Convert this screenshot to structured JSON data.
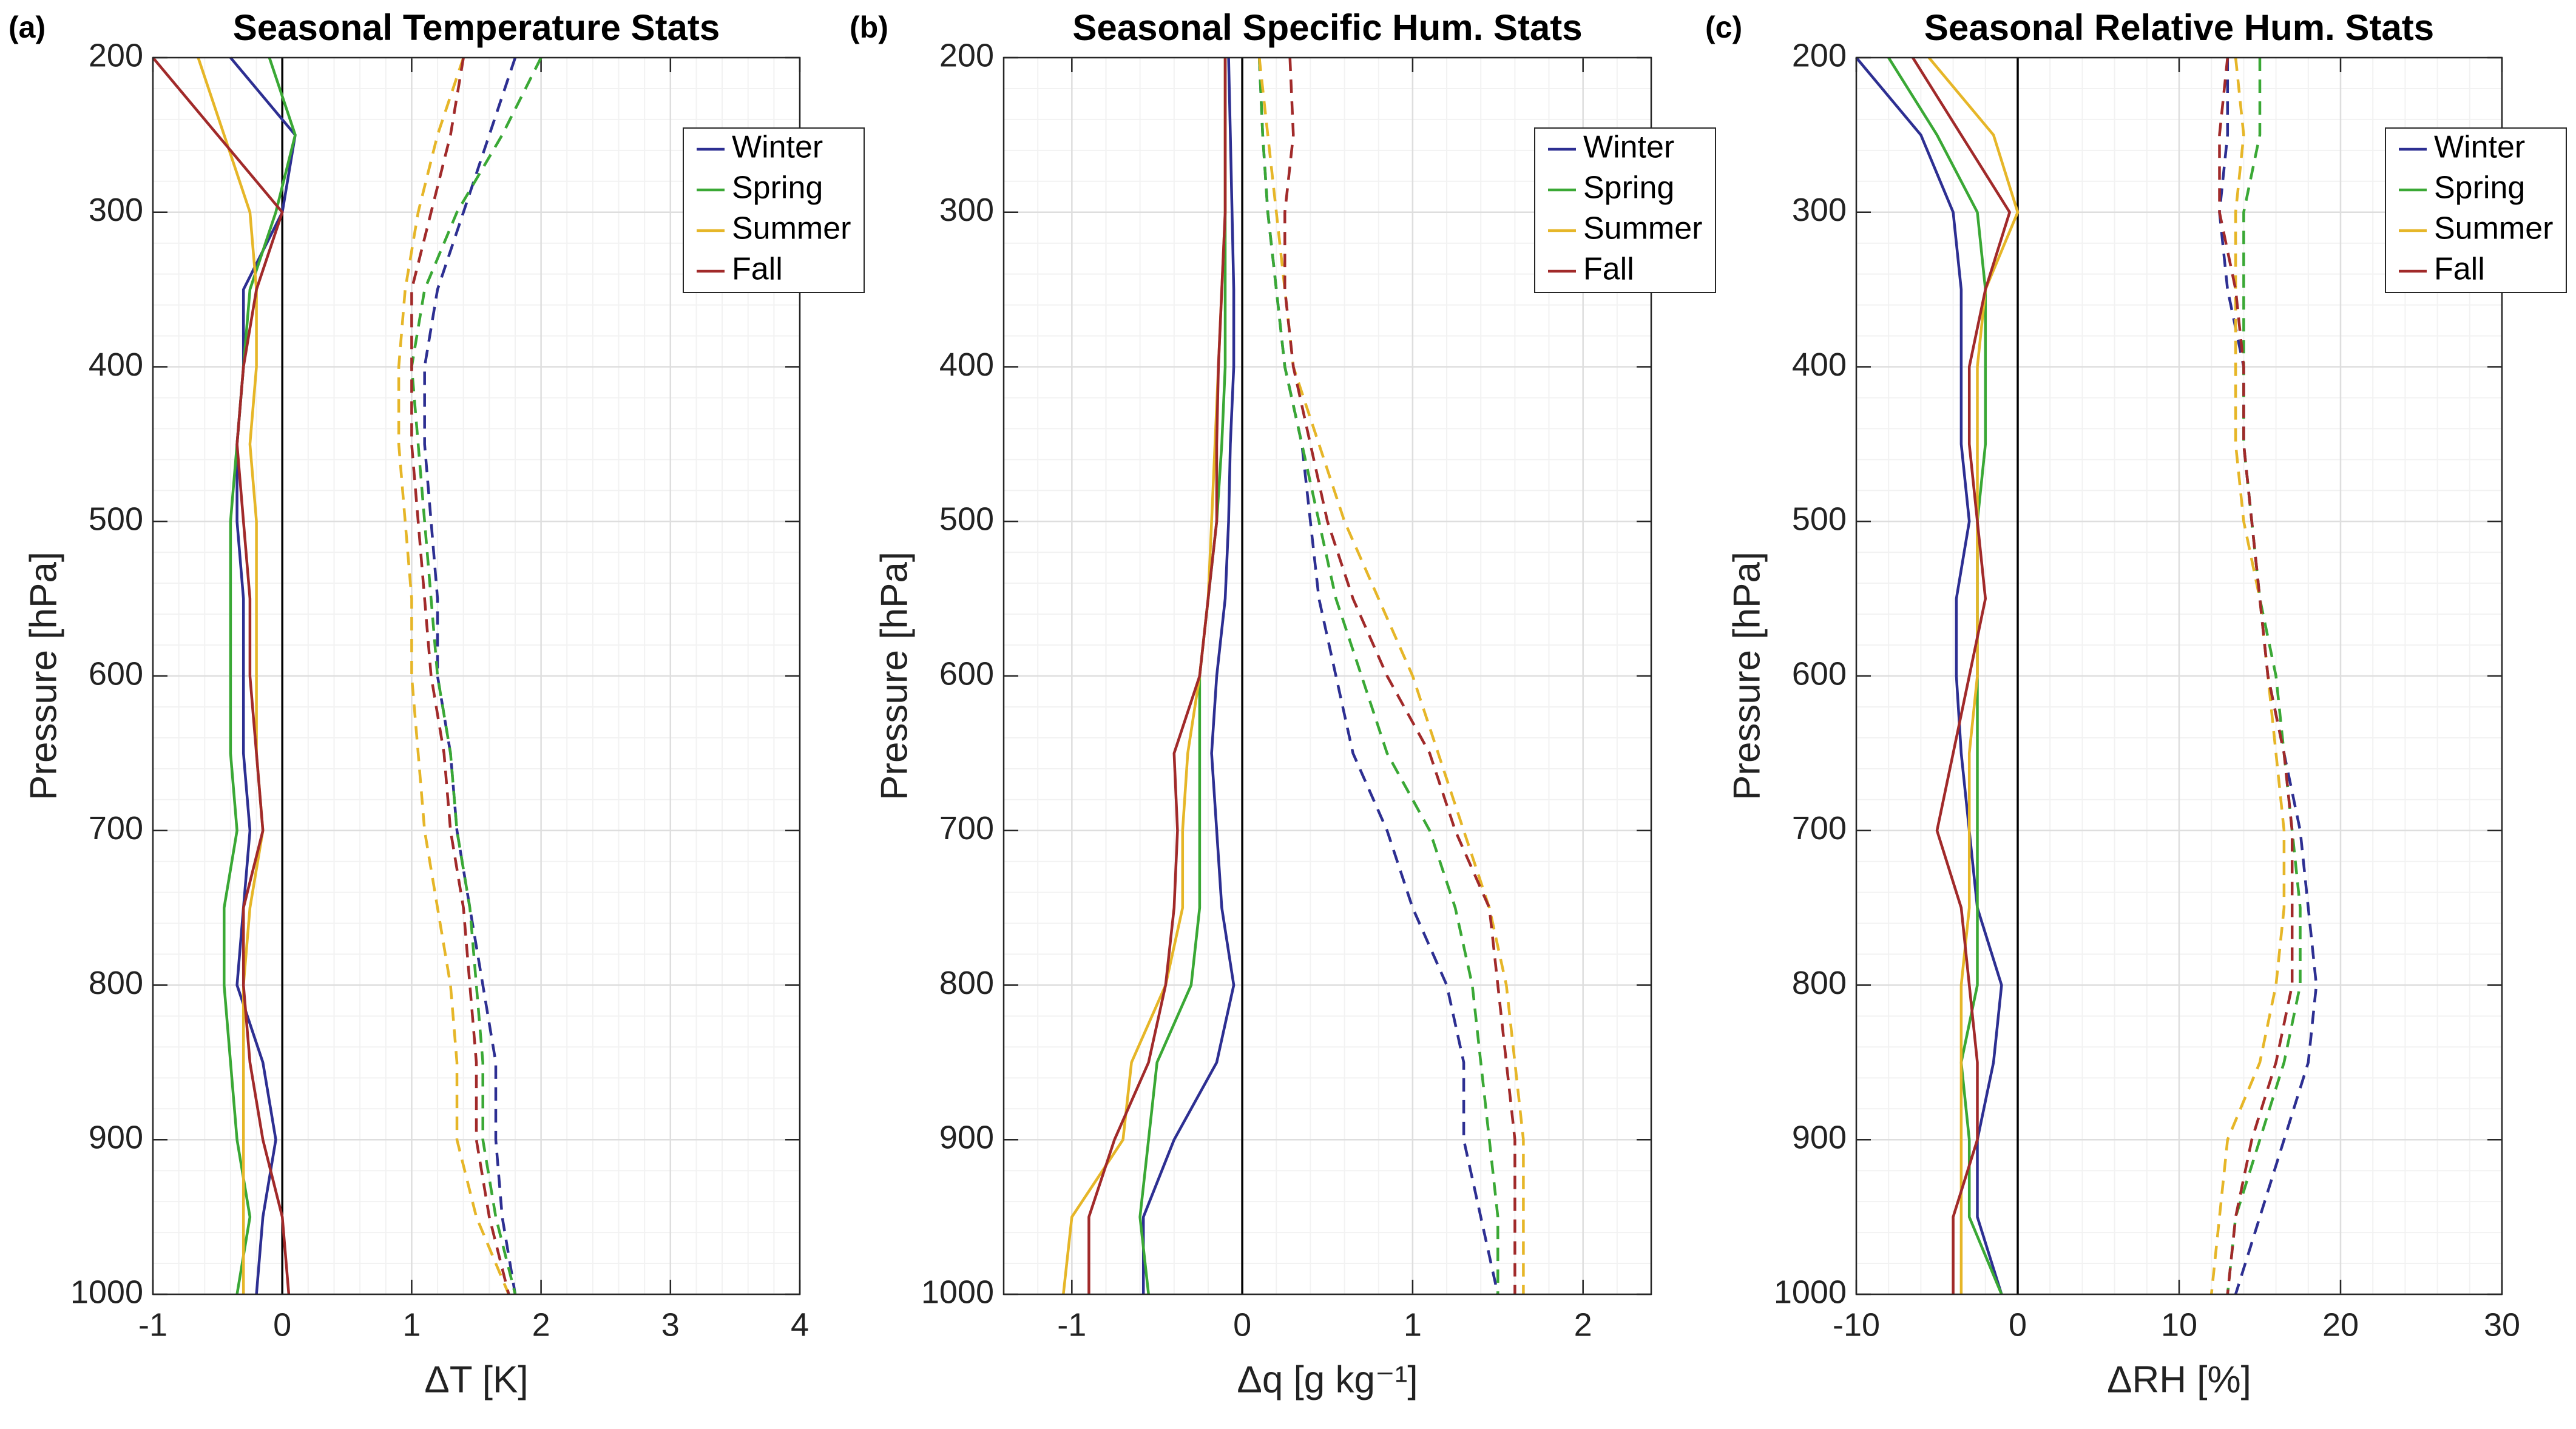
{
  "chart_data": [
    {
      "type": "line",
      "label": "(a)",
      "title": "Seasonal Temperature Stats",
      "xlabel": "ΔT [K]",
      "ylabel": "Pressure [hPa]",
      "y": [
        200,
        250,
        300,
        350,
        400,
        450,
        500,
        550,
        600,
        650,
        700,
        750,
        800,
        850,
        900,
        950,
        1000
      ],
      "ylim": [
        200,
        1000
      ],
      "y_reverse": true,
      "yticks": [
        200,
        300,
        400,
        500,
        600,
        700,
        800,
        900,
        1000
      ],
      "xlim": [
        -1,
        4
      ],
      "xticks": [
        -1,
        0,
        1,
        2,
        3,
        4
      ],
      "grid": true,
      "minor_grid": true,
      "vline": 0,
      "legend": "northeast",
      "series": [
        {
          "name": "Winter",
          "color": "#2d2f92",
          "values": [
            -0.4,
            0.1,
            0.0,
            -0.3,
            -0.3,
            -0.35,
            -0.35,
            -0.3,
            -0.3,
            -0.3,
            -0.25,
            -0.3,
            -0.35,
            -0.15,
            -0.05,
            -0.15,
            -0.2
          ],
          "dashed_values": [
            1.8,
            1.6,
            1.4,
            1.2,
            1.1,
            1.1,
            1.15,
            1.2,
            1.2,
            1.3,
            1.35,
            1.45,
            1.55,
            1.65,
            1.65,
            1.7,
            1.8
          ]
        },
        {
          "name": "Spring",
          "color": "#3aa835",
          "values": [
            -0.1,
            0.1,
            -0.05,
            -0.25,
            -0.3,
            -0.35,
            -0.4,
            -0.4,
            -0.4,
            -0.4,
            -0.35,
            -0.45,
            -0.45,
            -0.4,
            -0.35,
            -0.25,
            -0.35
          ],
          "dashed_values": [
            2.0,
            1.7,
            1.35,
            1.1,
            1.0,
            1.05,
            1.1,
            1.15,
            1.2,
            1.3,
            1.35,
            1.45,
            1.5,
            1.55,
            1.55,
            1.65,
            1.8
          ]
        },
        {
          "name": "Summer",
          "color": "#e6b628",
          "values": [
            -0.65,
            -0.45,
            -0.25,
            -0.2,
            -0.2,
            -0.25,
            -0.2,
            -0.2,
            -0.2,
            -0.2,
            -0.15,
            -0.25,
            -0.3,
            -0.3,
            -0.3,
            -0.3,
            -0.3
          ],
          "dashed_values": [
            1.4,
            1.2,
            1.05,
            0.95,
            0.9,
            0.9,
            0.95,
            1.0,
            1.0,
            1.05,
            1.1,
            1.2,
            1.3,
            1.35,
            1.35,
            1.5,
            1.75
          ]
        },
        {
          "name": "Fall",
          "color": "#a12a2a",
          "values": [
            -1.0,
            -0.5,
            0.0,
            -0.2,
            -0.3,
            -0.35,
            -0.3,
            -0.25,
            -0.25,
            -0.2,
            -0.15,
            -0.3,
            -0.3,
            -0.25,
            -0.15,
            0.0,
            0.05
          ],
          "dashed_values": [
            1.4,
            1.3,
            1.15,
            1.0,
            1.0,
            1.0,
            1.05,
            1.1,
            1.15,
            1.25,
            1.3,
            1.4,
            1.45,
            1.5,
            1.5,
            1.6,
            1.75
          ]
        }
      ]
    },
    {
      "type": "line",
      "label": "(b)",
      "title": "Seasonal Specific Hum. Stats",
      "xlabel": "Δq [g kg⁻¹]",
      "ylabel": "Pressure [hPa]",
      "y": [
        200,
        250,
        300,
        350,
        400,
        450,
        500,
        550,
        600,
        650,
        700,
        750,
        800,
        850,
        900,
        950,
        1000
      ],
      "ylim": [
        200,
        1000
      ],
      "y_reverse": true,
      "yticks": [
        200,
        300,
        400,
        500,
        600,
        700,
        800,
        900,
        1000
      ],
      "xlim": [
        -1.4,
        2.4
      ],
      "xticks": [
        -1,
        0,
        1,
        2
      ],
      "grid": true,
      "minor_grid": true,
      "vline": 0,
      "legend": "northeast",
      "series": [
        {
          "name": "Winter",
          "color": "#2d2f92",
          "values": [
            -0.08,
            -0.07,
            -0.06,
            -0.05,
            -0.05,
            -0.07,
            -0.08,
            -0.1,
            -0.15,
            -0.18,
            -0.15,
            -0.12,
            -0.05,
            -0.15,
            -0.4,
            -0.58,
            -0.58
          ],
          "dashed_values": [
            0.1,
            0.12,
            0.15,
            0.2,
            0.25,
            0.35,
            0.4,
            0.45,
            0.55,
            0.65,
            0.85,
            1.0,
            1.2,
            1.3,
            1.3,
            1.4,
            1.5
          ]
        },
        {
          "name": "Spring",
          "color": "#3aa835",
          "values": [
            -0.1,
            -0.1,
            -0.1,
            -0.1,
            -0.1,
            -0.12,
            -0.15,
            -0.2,
            -0.25,
            -0.25,
            -0.25,
            -0.25,
            -0.3,
            -0.5,
            -0.55,
            -0.6,
            -0.55
          ],
          "dashed_values": [
            0.1,
            0.12,
            0.15,
            0.2,
            0.25,
            0.35,
            0.45,
            0.55,
            0.7,
            0.85,
            1.1,
            1.25,
            1.35,
            1.4,
            1.45,
            1.5,
            1.5
          ]
        },
        {
          "name": "Summer",
          "color": "#e6b628",
          "values": [
            -0.1,
            -0.1,
            -0.1,
            -0.12,
            -0.14,
            -0.16,
            -0.18,
            -0.2,
            -0.25,
            -0.32,
            -0.35,
            -0.35,
            -0.45,
            -0.65,
            -0.7,
            -1.0,
            -1.05
          ],
          "dashed_values": [
            0.1,
            0.15,
            0.2,
            0.25,
            0.3,
            0.45,
            0.6,
            0.8,
            1.0,
            1.15,
            1.3,
            1.45,
            1.55,
            1.6,
            1.65,
            1.65,
            1.65
          ]
        },
        {
          "name": "Fall",
          "color": "#a12a2a",
          "values": [
            -0.1,
            -0.1,
            -0.1,
            -0.12,
            -0.14,
            -0.15,
            -0.15,
            -0.2,
            -0.25,
            -0.4,
            -0.38,
            -0.4,
            -0.45,
            -0.55,
            -0.75,
            -0.9,
            -0.9
          ],
          "dashed_values": [
            0.28,
            0.3,
            0.25,
            0.25,
            0.3,
            0.4,
            0.5,
            0.65,
            0.85,
            1.1,
            1.25,
            1.45,
            1.5,
            1.55,
            1.6,
            1.6,
            1.6
          ]
        }
      ]
    },
    {
      "type": "line",
      "label": "(c)",
      "title": "Seasonal Relative Hum. Stats",
      "xlabel": "ΔRH [%]",
      "ylabel": "Pressure [hPa]",
      "y": [
        200,
        250,
        300,
        350,
        400,
        450,
        500,
        550,
        600,
        650,
        700,
        750,
        800,
        850,
        900,
        950,
        1000
      ],
      "ylim": [
        200,
        1000
      ],
      "y_reverse": true,
      "yticks": [
        200,
        300,
        400,
        500,
        600,
        700,
        800,
        900,
        1000
      ],
      "xlim": [
        -10,
        30
      ],
      "xticks": [
        -10,
        0,
        10,
        20,
        30
      ],
      "grid": true,
      "minor_grid": true,
      "vline": 0,
      "legend": "northeast",
      "series": [
        {
          "name": "Winter",
          "color": "#2d2f92",
          "values": [
            -10,
            -6,
            -4,
            -3.5,
            -3.5,
            -3.5,
            -3,
            -3.8,
            -3.8,
            -3.5,
            -3,
            -2.5,
            -1,
            -1.5,
            -2.5,
            -2.5,
            -1
          ],
          "dashed_values": [
            13,
            13,
            12.5,
            13,
            14,
            14,
            14.5,
            15,
            15.5,
            16.5,
            17.5,
            18,
            18.5,
            18,
            16.5,
            15,
            13.5
          ]
        },
        {
          "name": "Spring",
          "color": "#3aa835",
          "values": [
            -8,
            -5,
            -2.5,
            -2,
            -2,
            -2,
            -2.5,
            -2.5,
            -2.5,
            -2.5,
            -2.5,
            -2.5,
            -2.5,
            -3.5,
            -3,
            -3,
            -1
          ],
          "dashed_values": [
            15,
            15,
            14,
            14,
            14,
            14,
            14.5,
            15,
            16,
            16.5,
            17,
            17.5,
            17.5,
            16.5,
            15,
            13.5,
            13
          ]
        },
        {
          "name": "Summer",
          "color": "#e6b628",
          "values": [
            -5.5,
            -1.5,
            0,
            -2,
            -2.5,
            -2.5,
            -2.5,
            -2.5,
            -2.5,
            -3,
            -3,
            -3,
            -3.5,
            -3.5,
            -3.5,
            -3.5,
            -3.5
          ],
          "dashed_values": [
            13.5,
            14,
            13.5,
            13.5,
            13.5,
            13.5,
            14,
            15,
            15.5,
            16,
            16.5,
            16.5,
            16,
            15,
            13,
            12.5,
            12
          ]
        },
        {
          "name": "Fall",
          "color": "#a12a2a",
          "values": [
            -6.5,
            -3.5,
            -0.5,
            -2,
            -3,
            -3,
            -2.5,
            -2,
            -3,
            -4,
            -5,
            -3.5,
            -3,
            -2.5,
            -2.5,
            -4,
            -4
          ],
          "dashed_values": [
            13,
            12.5,
            12.5,
            13.5,
            14,
            14,
            14.5,
            15,
            15.5,
            16.5,
            17,
            17,
            17,
            16,
            14.5,
            13.5,
            13
          ]
        }
      ]
    }
  ]
}
